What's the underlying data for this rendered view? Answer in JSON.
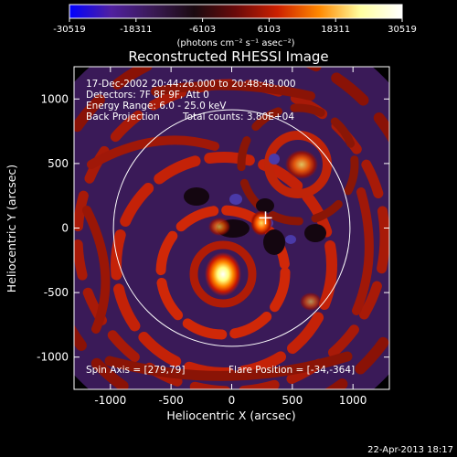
{
  "chart_data": {
    "type": "heatmap",
    "title": "Reconstructed RHESSI Image",
    "xlabel": "Heliocentric X (arcsec)",
    "ylabel": "Heliocentric Y (arcsec)",
    "xlim": [
      -1300,
      1300
    ],
    "ylim": [
      -1250,
      1250
    ],
    "x_ticks": [
      -1000,
      -500,
      0,
      500,
      1000
    ],
    "y_ticks": [
      -1000,
      -500,
      0,
      500,
      1000
    ],
    "colorbar": {
      "min": -30519,
      "max": 30519,
      "tick_values": [
        -30519,
        -18311,
        -6103,
        6103,
        18311,
        30519
      ],
      "tick_labels": [
        "-30519",
        "-18311",
        "-6103",
        "6103",
        "18311",
        "30519"
      ],
      "units": "(photons cm⁻² s⁻¹ asec⁻²)",
      "colors": [
        "#0000ff",
        "#5020a0",
        "#3a1a55",
        "#1a0a10",
        "#6a0a0a",
        "#cc2000",
        "#ff8800",
        "#ffffa0",
        "#ffffff"
      ]
    },
    "annotations": {
      "time_range": "17-Dec-2002 20:44:26.000 to 20:48:48.000",
      "detectors": "Detectors: 7F 8F 9F, Att 0",
      "energy": "Energy Range: 6.0 - 25.0 keV",
      "method": "Back Projection",
      "counts": "Total counts: 3.80E+04",
      "spin_axis": "Spin Axis = [279,79]",
      "flare_position": "Flare Position = [-34,-364]"
    },
    "solar_disk_radius_arcsec": 975,
    "source_peaks": [
      {
        "x": -34,
        "y": -364,
        "intensity": 30519
      },
      {
        "x": 270,
        "y": 40,
        "intensity": 18000
      },
      {
        "x": 545,
        "y": 520,
        "intensity": 14000
      }
    ],
    "marker": {
      "x": 279,
      "y": 79
    },
    "footer_timestamp": "22-Apr-2013 18:17"
  }
}
